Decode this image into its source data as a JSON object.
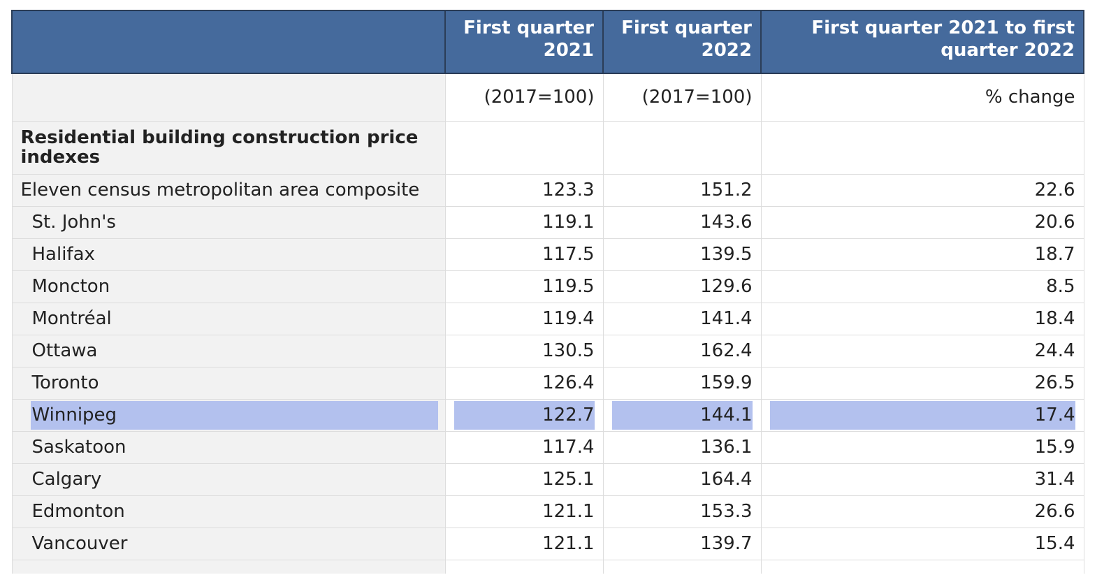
{
  "colors": {
    "header_bg": "#456a9c",
    "header_border": "#2b3d57",
    "highlight": "#b3c1ee"
  },
  "header": {
    "col_label": "",
    "col_q21": "First quarter 2021",
    "col_q22": "First quarter 2022",
    "col_change": "First quarter 2021 to first quarter 2022"
  },
  "units": {
    "label": "",
    "q21": "(2017=100)",
    "q22": "(2017=100)",
    "change": "% change"
  },
  "section": {
    "title": "Residential building construction price indexes"
  },
  "rows": [
    {
      "name": "Eleven census metropolitan area composite",
      "q21": "123.3",
      "q22": "151.2",
      "change": "22.6"
    },
    {
      "name": "St. John's",
      "q21": "119.1",
      "q22": "143.6",
      "change": "20.6"
    },
    {
      "name": "Halifax",
      "q21": "117.5",
      "q22": "139.5",
      "change": "18.7"
    },
    {
      "name": "Moncton",
      "q21": "119.5",
      "q22": "129.6",
      "change": "8.5"
    },
    {
      "name": "Montréal",
      "q21": "119.4",
      "q22": "141.4",
      "change": "18.4"
    },
    {
      "name": "Ottawa",
      "q21": "130.5",
      "q22": "162.4",
      "change": "24.4"
    },
    {
      "name": "Toronto",
      "q21": "126.4",
      "q22": "159.9",
      "change": "26.5"
    },
    {
      "name": "Winnipeg",
      "q21": "122.7",
      "q22": "144.1",
      "change": "17.4"
    },
    {
      "name": "Saskatoon",
      "q21": "117.4",
      "q22": "136.1",
      "change": "15.9"
    },
    {
      "name": "Calgary",
      "q21": "125.1",
      "q22": "164.4",
      "change": "31.4"
    },
    {
      "name": "Edmonton",
      "q21": "121.1",
      "q22": "153.3",
      "change": "26.6"
    },
    {
      "name": "Vancouver",
      "q21": "121.1",
      "q22": "139.7",
      "change": "15.4"
    }
  ]
}
